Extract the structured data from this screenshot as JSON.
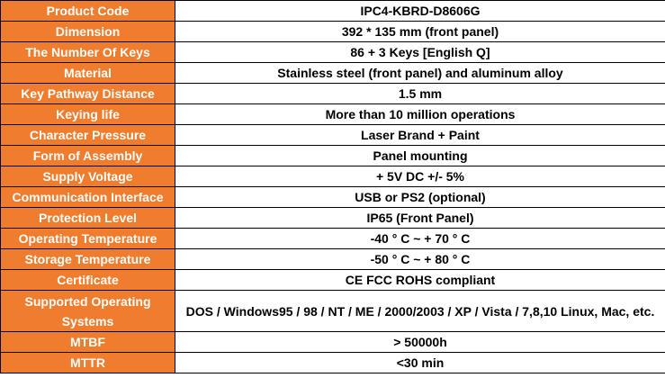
{
  "specs": [
    {
      "label": "Product Code",
      "value": "IPC4-KBRD-D8606G"
    },
    {
      "label": "Dimension",
      "value": "392 * 135 mm (front panel)"
    },
    {
      "label": "The Number Of Keys",
      "value": "86 + 3 Keys [English Q]"
    },
    {
      "label": "Material",
      "value": "Stainless steel (front panel) and aluminum alloy"
    },
    {
      "label": "Key Pathway Distance",
      "value": "1.5 mm"
    },
    {
      "label": "Keying life",
      "value": "More than 10 million operations"
    },
    {
      "label": "Character Pressure",
      "value": "Laser Brand + Paint"
    },
    {
      "label": "Form of Assembly",
      "value": "Panel mounting"
    },
    {
      "label": "Supply Voltage",
      "value": "+ 5V DC +/- 5%"
    },
    {
      "label": "Communication Interface",
      "value": "USB or PS2 (optional)"
    },
    {
      "label": "Protection Level",
      "value": "IP65 (Front Panel)"
    },
    {
      "label": "Operating Temperature",
      "value": "-40 ° C ~ + 70 ° C"
    },
    {
      "label": "Storage Temperature",
      "value": "-50 ° C ~ + 80 ° C"
    },
    {
      "label": "Certificate",
      "value": "CE FCC ROHS compliant"
    },
    {
      "label": "Supported Operating Systems",
      "value": "DOS / Windows95 / 98 / NT / ME / 2000/2003 / XP / Vista / 7,8,10 Linux, Mac, etc."
    },
    {
      "label": "MTBF",
      "value": "> 50000h"
    },
    {
      "label": "MTTR",
      "value": "<30 min"
    }
  ],
  "colors": {
    "label_bg": "#f07c2d",
    "label_text": "#ffffff",
    "value_bg": "#ffffff",
    "value_text": "#000000",
    "border": "#000000"
  }
}
